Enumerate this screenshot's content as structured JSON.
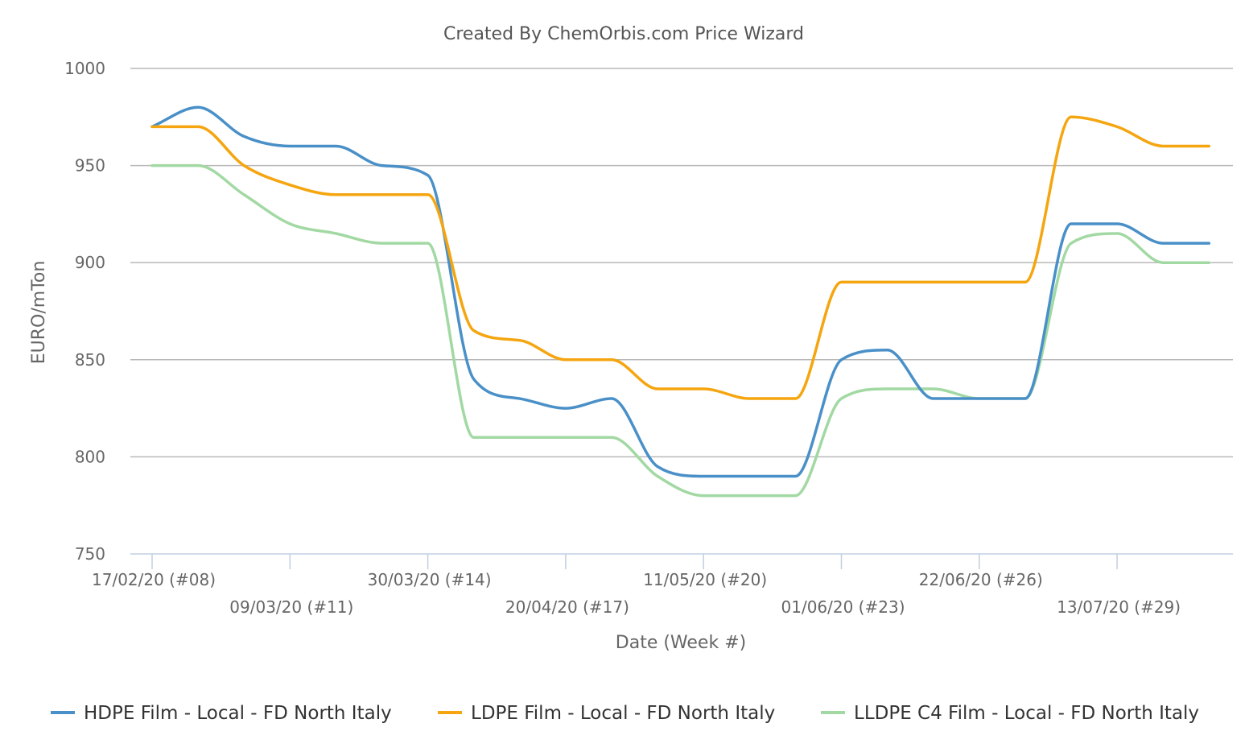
{
  "chart_data": {
    "type": "line",
    "title": "Created By ChemOrbis.com Price Wizard",
    "xlabel": "Date (Week #)",
    "ylabel": "EURO/mTon",
    "ylim": [
      750,
      1000
    ],
    "yticks": [
      750,
      800,
      850,
      900,
      950,
      1000
    ],
    "grid": true,
    "legend_position": "bottom",
    "week_labels": [
      "17/02/20 (#08)",
      "09/03/20 (#11)",
      "30/03/20 (#14)",
      "20/04/20 (#17)",
      "11/05/20 (#20)",
      "01/06/20 (#23)",
      "22/06/20 (#26)",
      "13/07/20 (#29)"
    ],
    "x": [
      "17/02/20",
      "24/02/20",
      "02/03/20",
      "09/03/20",
      "16/03/20",
      "23/03/20",
      "30/03/20",
      "06/04/20",
      "13/04/20",
      "20/04/20",
      "27/04/20",
      "04/05/20",
      "11/05/20",
      "18/05/20",
      "25/05/20",
      "01/06/20",
      "08/06/20",
      "15/06/20",
      "22/06/20",
      "29/06/20",
      "06/07/20",
      "13/07/20",
      "20/07/20",
      "27/07/20"
    ],
    "series": [
      {
        "name": "HDPE Film - Local - FD North Italy",
        "color": "#4a90c8",
        "values": [
          970,
          980,
          965,
          960,
          960,
          950,
          945,
          840,
          830,
          825,
          830,
          795,
          790,
          790,
          790,
          850,
          855,
          830,
          830,
          830,
          920,
          920,
          910,
          910
        ]
      },
      {
        "name": "LDPE Film - Local - FD North Italy",
        "color": "#f5a50f",
        "values": [
          970,
          970,
          950,
          940,
          935,
          935,
          935,
          865,
          860,
          850,
          850,
          835,
          835,
          830,
          830,
          890,
          890,
          890,
          890,
          890,
          975,
          970,
          960,
          960
        ]
      },
      {
        "name": "LLDPE C4 Film - Local - FD North Italy",
        "color": "#a2d9a3",
        "values": [
          950,
          950,
          935,
          920,
          915,
          910,
          910,
          810,
          810,
          810,
          810,
          790,
          780,
          780,
          780,
          830,
          835,
          835,
          830,
          830,
          910,
          915,
          900,
          900
        ]
      }
    ]
  }
}
